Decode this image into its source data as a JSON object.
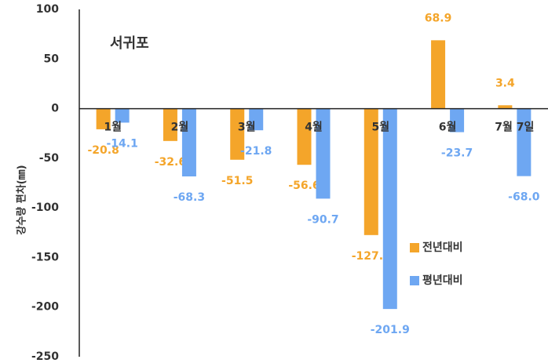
{
  "chart_data": {
    "type": "bar",
    "annotation": "서귀포",
    "y_label": "강수량 편차(㎜)",
    "categories": [
      "1월",
      "2월",
      "3월",
      "4월",
      "5월",
      "6월",
      "7월 7일"
    ],
    "series": [
      {
        "name": "전년대비",
        "color": "#f4a52a",
        "values": [
          -20.8,
          -32.6,
          -51.5,
          -56.6,
          -127.4,
          68.9,
          3.4
        ],
        "value_labels": [
          "-20.8",
          "-32.6",
          "-51.5",
          "-56.6",
          "-127.4",
          "68.9",
          "3.4"
        ]
      },
      {
        "name": "평년대비",
        "color": "#6ea7f2",
        "values": [
          -14.1,
          -68.3,
          -21.8,
          -90.7,
          -201.9,
          -23.7,
          -68.0
        ],
        "value_labels": [
          "-14.1",
          "-68.3",
          "-21.8",
          "-90.7",
          "-201.9",
          "-23.7",
          "-68.0"
        ]
      }
    ],
    "ylim": [
      -250,
      100
    ],
    "yticks": [
      -250,
      -200,
      -150,
      -100,
      -50,
      0,
      50,
      100
    ]
  }
}
